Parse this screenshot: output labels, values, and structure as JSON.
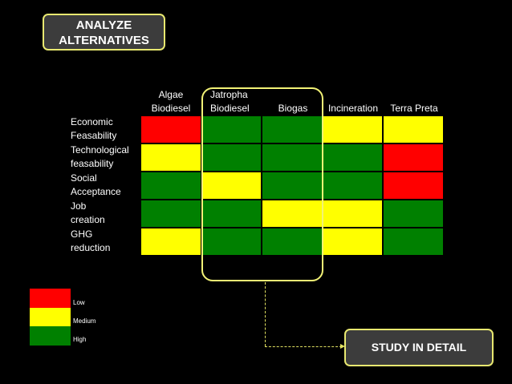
{
  "title": {
    "line1": "ANALYZE",
    "line2": "ALTERNATIVES"
  },
  "columns": [
    {
      "line1": "Algae",
      "line2": "Biodiesel"
    },
    {
      "line1": "Jatropha",
      "line2": "Biodiesel"
    },
    {
      "line1": "",
      "line2": "Biogas"
    },
    {
      "line1": "",
      "line2": "Incineration"
    },
    {
      "line1": "",
      "line2": "Terra Preta"
    }
  ],
  "rows": [
    {
      "line1": "Economic",
      "line2": "Feasability"
    },
    {
      "line1": "Technological",
      "line2": "feasability"
    },
    {
      "line1": "Social",
      "line2": "Acceptance"
    },
    {
      "line1": "Job",
      "line2": "creation"
    },
    {
      "line1": "GHG",
      "line2": "reduction"
    }
  ],
  "ratings": [
    [
      "low",
      "high",
      "high",
      "medium",
      "medium"
    ],
    [
      "medium",
      "high",
      "high",
      "high",
      "low"
    ],
    [
      "high",
      "medium",
      "high",
      "high",
      "low"
    ],
    [
      "high",
      "high",
      "medium",
      "medium",
      "high"
    ],
    [
      "medium",
      "high",
      "high",
      "medium",
      "high"
    ]
  ],
  "colors": {
    "low": "#ff0000",
    "medium": "#ffff00",
    "high": "#008000",
    "accent": "#f2f276"
  },
  "legend": [
    {
      "key": "low",
      "label": "Low"
    },
    {
      "key": "medium",
      "label": "Medium"
    },
    {
      "key": "high",
      "label": "High"
    }
  ],
  "study_box": {
    "label": "STUDY IN DETAIL"
  }
}
